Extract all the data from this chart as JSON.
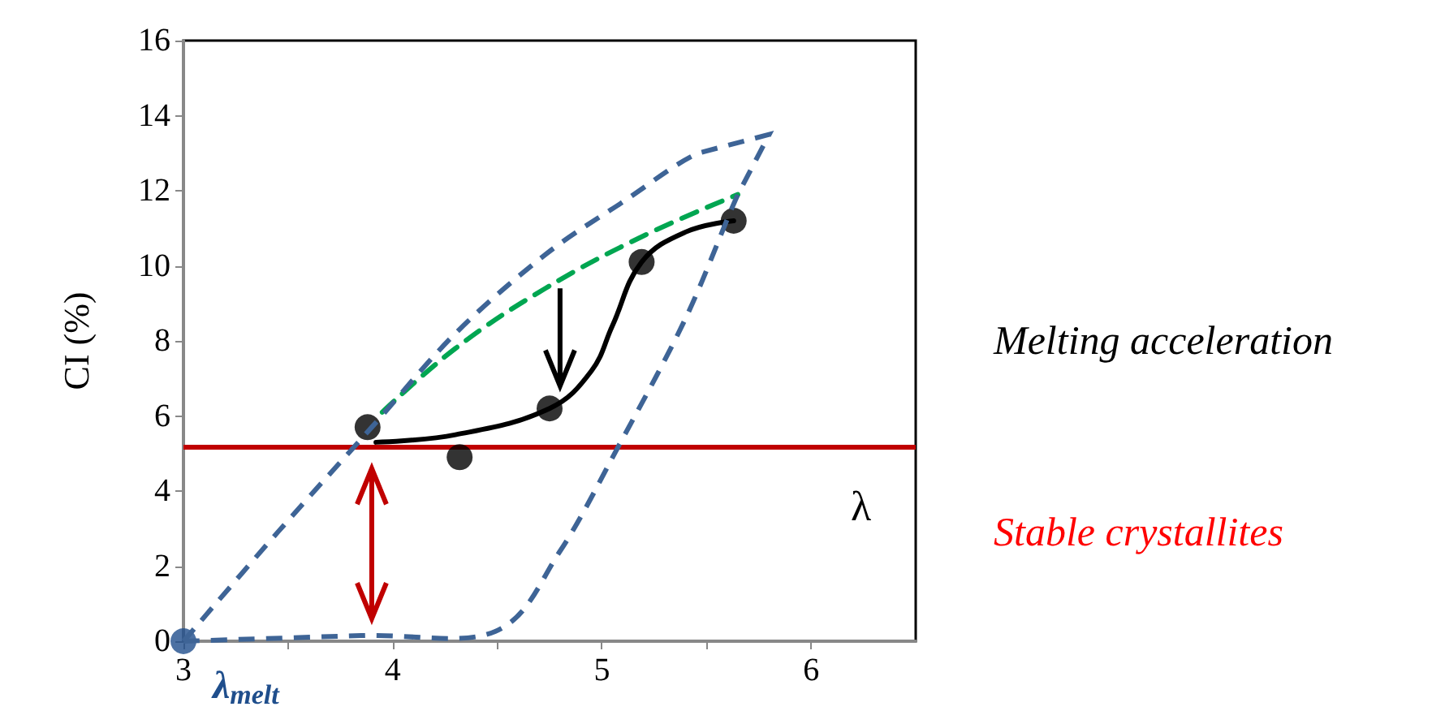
{
  "chart_data": {
    "type": "line",
    "xlabel": "λ",
    "ylabel": "CI (%)",
    "xlim": [
      3,
      6.5
    ],
    "xticks": [
      3,
      {
        "value": 3.5,
        "label": null
      },
      4,
      {
        "value": 4.5,
        "label": null
      },
      5,
      {
        "value": 5.5,
        "label": null
      },
      6
    ],
    "ylim": [
      0,
      16
    ],
    "yticks": [
      0,
      2,
      4,
      6,
      8,
      10,
      12,
      14,
      16
    ],
    "grid": false,
    "series": [
      {
        "line_style": "dashed",
        "color": "#00a651",
        "x": [
          3.95,
          4.3,
          4.73,
          5.2,
          5.65
        ],
        "values": [
          6.1,
          7.8,
          9.4,
          10.8,
          11.9
        ]
      },
      {
        "line_style": "solid",
        "color": "#000000",
        "x": [
          3.92,
          4.3,
          4.75,
          4.95,
          5.05,
          5.19,
          5.4,
          5.63
        ],
        "values": [
          5.3,
          5.5,
          6.2,
          7.2,
          8.4,
          10.1,
          10.9,
          11.2
        ]
      },
      {
        "type": "scatter",
        "marker": "circle",
        "color": "#000000",
        "x": [
          3.88,
          4.32,
          4.75,
          5.19,
          5.63
        ],
        "values": [
          5.7,
          4.9,
          6.2,
          10.1,
          11.2
        ]
      },
      {
        "type": "scatter",
        "marker": "circle",
        "color": "#1f4e8c",
        "x": [
          3.0
        ],
        "values": [
          0
        ]
      }
    ],
    "ref_lines": [
      {
        "axis": "y",
        "value": 5.2,
        "label": null,
        "color": "#c00000"
      }
    ],
    "annotations": [
      {
        "text": "λ$_{melt}$",
        "x": 3,
        "y": 0
      },
      "Melting acceleration",
      "Stable crystallites"
    ]
  }
}
